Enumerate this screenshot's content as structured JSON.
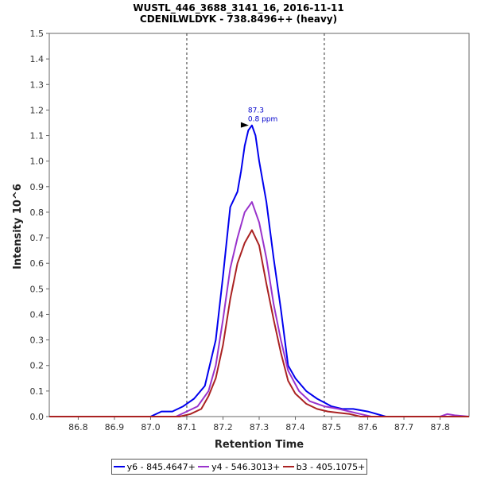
{
  "chart_data": {
    "type": "line",
    "title": "WUSTL_446_3688_3141_16, 2016-11-11",
    "subtitle": "CDENILWLDYK - 738.8496++ (heavy)",
    "xlabel": "Retention Time",
    "ylabel": "Intensity 10^6",
    "xlim": [
      86.72,
      87.88
    ],
    "ylim": [
      0,
      1.5
    ],
    "x_ticks": [
      "86.8",
      "86.9",
      "87.0",
      "87.1",
      "87.2",
      "87.3",
      "87.4",
      "87.5",
      "87.6",
      "87.7",
      "87.8"
    ],
    "y_ticks": [
      "0.0",
      "0.1",
      "0.2",
      "0.3",
      "0.4",
      "0.5",
      "0.6",
      "0.7",
      "0.8",
      "0.9",
      "1.0",
      "1.1",
      "1.2",
      "1.3",
      "1.4",
      "1.5"
    ],
    "integration_boundaries": [
      87.1,
      87.48
    ],
    "annotation": {
      "rt": "87.3",
      "ppm": "0.8 ppm",
      "x": 87.28,
      "y": 1.14
    },
    "series": [
      {
        "name": "y6 - 845.4647+",
        "color": "#0000ee",
        "points": [
          [
            86.72,
            0
          ],
          [
            87.0,
            0
          ],
          [
            87.03,
            0.02
          ],
          [
            87.06,
            0.02
          ],
          [
            87.09,
            0.04
          ],
          [
            87.12,
            0.07
          ],
          [
            87.15,
            0.12
          ],
          [
            87.18,
            0.3
          ],
          [
            87.2,
            0.55
          ],
          [
            87.22,
            0.82
          ],
          [
            87.24,
            0.88
          ],
          [
            87.25,
            0.96
          ],
          [
            87.26,
            1.06
          ],
          [
            87.27,
            1.12
          ],
          [
            87.28,
            1.14
          ],
          [
            87.29,
            1.1
          ],
          [
            87.3,
            1.0
          ],
          [
            87.32,
            0.84
          ],
          [
            87.34,
            0.62
          ],
          [
            87.36,
            0.42
          ],
          [
            87.38,
            0.2
          ],
          [
            87.4,
            0.15
          ],
          [
            87.43,
            0.1
          ],
          [
            87.46,
            0.07
          ],
          [
            87.5,
            0.04
          ],
          [
            87.53,
            0.03
          ],
          [
            87.56,
            0.03
          ],
          [
            87.6,
            0.02
          ],
          [
            87.65,
            0
          ],
          [
            87.88,
            0
          ]
        ]
      },
      {
        "name": "y4 - 546.3013+",
        "color": "#9933cc",
        "points": [
          [
            86.72,
            0
          ],
          [
            87.07,
            0
          ],
          [
            87.1,
            0.02
          ],
          [
            87.13,
            0.04
          ],
          [
            87.16,
            0.1
          ],
          [
            87.18,
            0.2
          ],
          [
            87.2,
            0.38
          ],
          [
            87.22,
            0.58
          ],
          [
            87.24,
            0.7
          ],
          [
            87.26,
            0.8
          ],
          [
            87.28,
            0.84
          ],
          [
            87.3,
            0.76
          ],
          [
            87.32,
            0.62
          ],
          [
            87.34,
            0.44
          ],
          [
            87.36,
            0.3
          ],
          [
            87.38,
            0.18
          ],
          [
            87.41,
            0.1
          ],
          [
            87.44,
            0.06
          ],
          [
            87.48,
            0.04
          ],
          [
            87.52,
            0.03
          ],
          [
            87.55,
            0.02
          ],
          [
            87.58,
            0.01
          ],
          [
            87.61,
            0
          ],
          [
            87.8,
            0
          ],
          [
            87.82,
            0.01
          ],
          [
            87.84,
            0.005
          ],
          [
            87.88,
            0
          ]
        ]
      },
      {
        "name": "b3 - 405.1075+",
        "color": "#aa2222",
        "points": [
          [
            86.72,
            0
          ],
          [
            87.08,
            0
          ],
          [
            87.11,
            0.01
          ],
          [
            87.14,
            0.03
          ],
          [
            87.16,
            0.08
          ],
          [
            87.18,
            0.15
          ],
          [
            87.2,
            0.28
          ],
          [
            87.22,
            0.46
          ],
          [
            87.24,
            0.6
          ],
          [
            87.26,
            0.68
          ],
          [
            87.28,
            0.73
          ],
          [
            87.3,
            0.67
          ],
          [
            87.32,
            0.52
          ],
          [
            87.34,
            0.38
          ],
          [
            87.36,
            0.25
          ],
          [
            87.38,
            0.14
          ],
          [
            87.4,
            0.09
          ],
          [
            87.43,
            0.05
          ],
          [
            87.46,
            0.03
          ],
          [
            87.49,
            0.02
          ],
          [
            87.52,
            0.015
          ],
          [
            87.55,
            0.01
          ],
          [
            87.58,
            0
          ],
          [
            87.88,
            0
          ]
        ]
      }
    ]
  }
}
